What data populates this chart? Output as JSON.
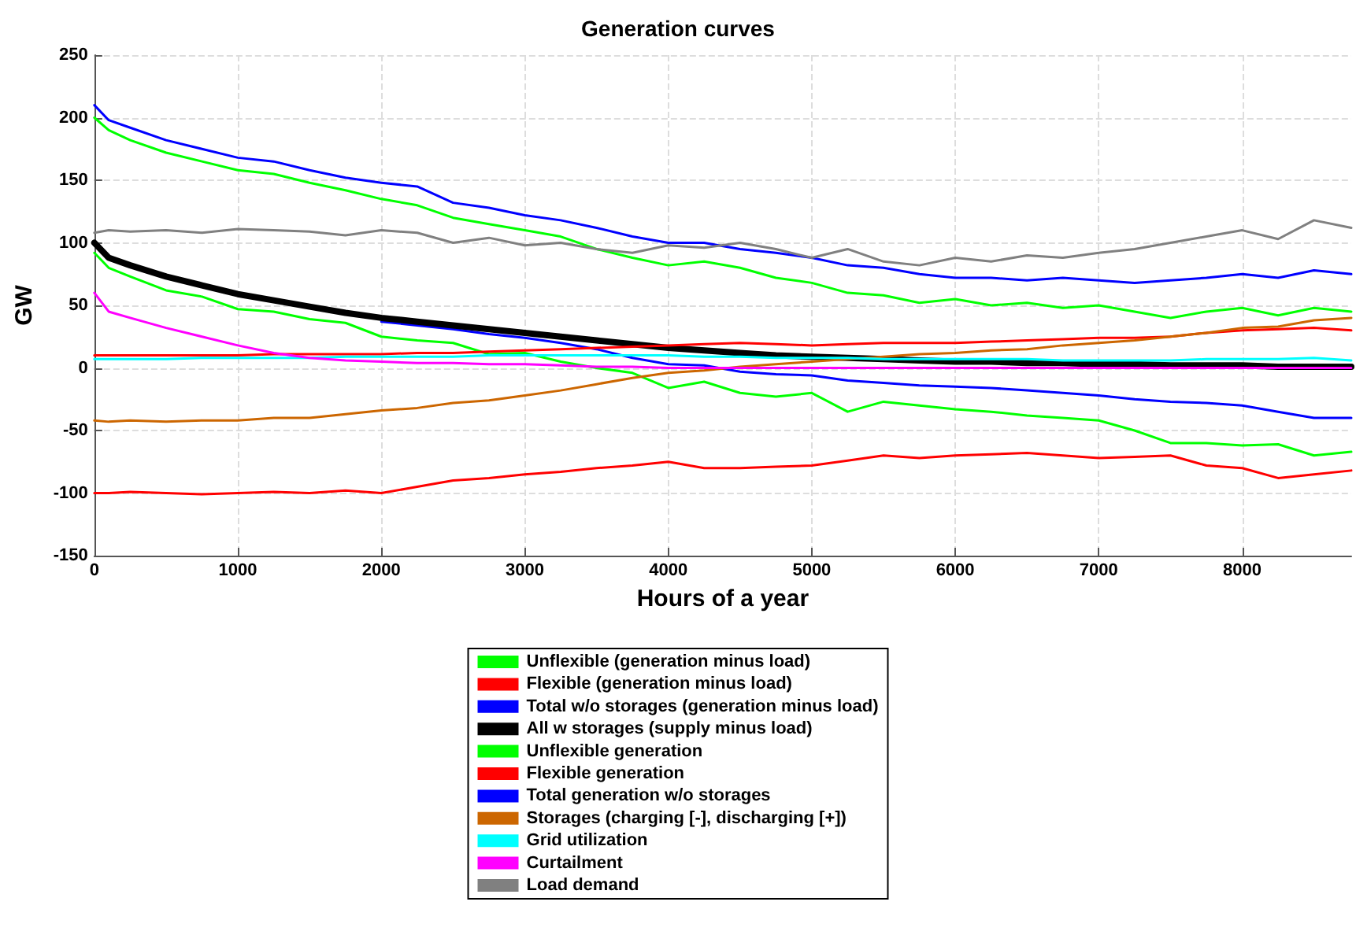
{
  "chart_data": {
    "type": "line",
    "title": "Generation curves",
    "xlabel": "Hours of a year",
    "ylabel": "GW",
    "x": [
      0,
      100,
      250,
      500,
      750,
      1000,
      1250,
      1500,
      1750,
      2000,
      2250,
      2500,
      2750,
      3000,
      3250,
      3500,
      3750,
      4000,
      4250,
      4500,
      4750,
      5000,
      5250,
      5500,
      5750,
      6000,
      6250,
      6500,
      6750,
      7000,
      7250,
      7500,
      7750,
      8000,
      8250,
      8500,
      8760
    ],
    "series": [
      {
        "name": "Unflexible (generation minus load)",
        "color": "#00ff00",
        "values": [
          92,
          80,
          73,
          62,
          57,
          47,
          45,
          39,
          36,
          25,
          22,
          20,
          11,
          12,
          5,
          0,
          -4,
          -16,
          -11,
          -20,
          -23,
          -20,
          -35,
          -27,
          -30,
          -33,
          -35,
          -38,
          -40,
          -42,
          -50,
          -60,
          -60,
          -62,
          -61,
          -70,
          -67
        ]
      },
      {
        "name": "Flexible (generation minus load)",
        "color": "#ff0000",
        "values": [
          -100,
          -100,
          -99,
          -100,
          -101,
          -100,
          -99,
          -100,
          -98,
          -100,
          -95,
          -90,
          -88,
          -85,
          -83,
          -80,
          -78,
          -75,
          -80,
          -80,
          -79,
          -78,
          -74,
          -70,
          -72,
          -70,
          -69,
          -68,
          -70,
          -72,
          -71,
          -70,
          -78,
          -80,
          -88,
          -85,
          -82
        ]
      },
      {
        "name": "Total w/o storages (generation minus load)",
        "color": "#0000ff",
        "values": [
          null,
          null,
          null,
          null,
          null,
          null,
          null,
          null,
          null,
          37,
          34,
          31,
          27,
          24,
          20,
          15,
          8,
          3,
          2,
          -3,
          -5,
          -6,
          -10,
          -12,
          -14,
          -15,
          -16,
          -18,
          -20,
          -22,
          -25,
          -27,
          -28,
          -30,
          -35,
          -40,
          -40
        ]
      },
      {
        "name": "All w storages (supply minus load)",
        "color": "#000000",
        "values": [
          100,
          88,
          82,
          73,
          66,
          59,
          54,
          49,
          44,
          40,
          37,
          34,
          31,
          28,
          25,
          22,
          19,
          16,
          14,
          12,
          10,
          9,
          8,
          7,
          6,
          5,
          5,
          4,
          4,
          3,
          3,
          2,
          2,
          2,
          1,
          1,
          1
        ]
      },
      {
        "name": "Unflexible generation",
        "color": "#00ff00",
        "values": [
          200,
          190,
          182,
          172,
          165,
          158,
          155,
          148,
          142,
          135,
          130,
          120,
          115,
          110,
          105,
          95,
          88,
          82,
          85,
          80,
          72,
          68,
          60,
          58,
          52,
          55,
          50,
          52,
          48,
          50,
          45,
          40,
          45,
          48,
          42,
          48,
          45
        ]
      },
      {
        "name": "Flexible generation",
        "color": "#ff0000",
        "values": [
          10,
          10,
          10,
          10,
          10,
          10,
          11,
          11,
          11,
          11,
          12,
          12,
          13,
          14,
          15,
          16,
          17,
          18,
          19,
          20,
          19,
          18,
          19,
          20,
          20,
          20,
          21,
          22,
          23,
          24,
          24,
          25,
          28,
          30,
          31,
          32,
          30
        ]
      },
      {
        "name": "Total generation w/o storages",
        "color": "#0000ff",
        "values": [
          210,
          198,
          192,
          182,
          175,
          168,
          165,
          158,
          152,
          148,
          145,
          132,
          128,
          122,
          118,
          112,
          105,
          100,
          100,
          95,
          92,
          88,
          82,
          80,
          75,
          72,
          72,
          70,
          72,
          70,
          68,
          70,
          72,
          75,
          72,
          78,
          75
        ]
      },
      {
        "name": "Storages (charging [-], discharging [+])",
        "color": "#cc6600",
        "values": [
          -42,
          -43,
          -42,
          -43,
          -42,
          -42,
          -40,
          -40,
          -37,
          -34,
          -32,
          -28,
          -26,
          -22,
          -18,
          -13,
          -8,
          -4,
          -2,
          1,
          3,
          5,
          7,
          9,
          11,
          12,
          14,
          15,
          18,
          20,
          22,
          25,
          28,
          32,
          33,
          38,
          40
        ]
      },
      {
        "name": "Grid utilization",
        "color": "#00ffff",
        "values": [
          7,
          7,
          7,
          7,
          8,
          8,
          8,
          8,
          9,
          9,
          9,
          9,
          10,
          10,
          10,
          10,
          10,
          10,
          9,
          9,
          8,
          8,
          8,
          7,
          7,
          7,
          7,
          7,
          6,
          6,
          6,
          6,
          7,
          7,
          7,
          8,
          6
        ]
      },
      {
        "name": "Curtailment",
        "color": "#ff00ff",
        "values": [
          60,
          45,
          40,
          32,
          25,
          18,
          12,
          8,
          6,
          5,
          4,
          4,
          3,
          3,
          2,
          1,
          1,
          0,
          0,
          0,
          0,
          0,
          0,
          0,
          0,
          0,
          0,
          0,
          0,
          0,
          0,
          0,
          0,
          0,
          0,
          0,
          0
        ]
      },
      {
        "name": "Load demand",
        "color": "#808080",
        "values": [
          108,
          110,
          109,
          110,
          108,
          111,
          110,
          109,
          106,
          110,
          108,
          100,
          104,
          98,
          100,
          95,
          92,
          98,
          96,
          100,
          95,
          88,
          95,
          85,
          82,
          88,
          85,
          90,
          88,
          92,
          95,
          100,
          105,
          110,
          103,
          118,
          112
        ]
      }
    ],
    "xlim": [
      0,
      8760
    ],
    "xticks": [
      0,
      1000,
      2000,
      3000,
      4000,
      5000,
      6000,
      7000,
      8000
    ],
    "ylim": [
      -150,
      250
    ],
    "yticks": [
      -150,
      -100,
      -50,
      0,
      50,
      100,
      150,
      200,
      250
    ],
    "grid": true,
    "legend": "bottom",
    "marker": "none",
    "line_style": "solid"
  }
}
